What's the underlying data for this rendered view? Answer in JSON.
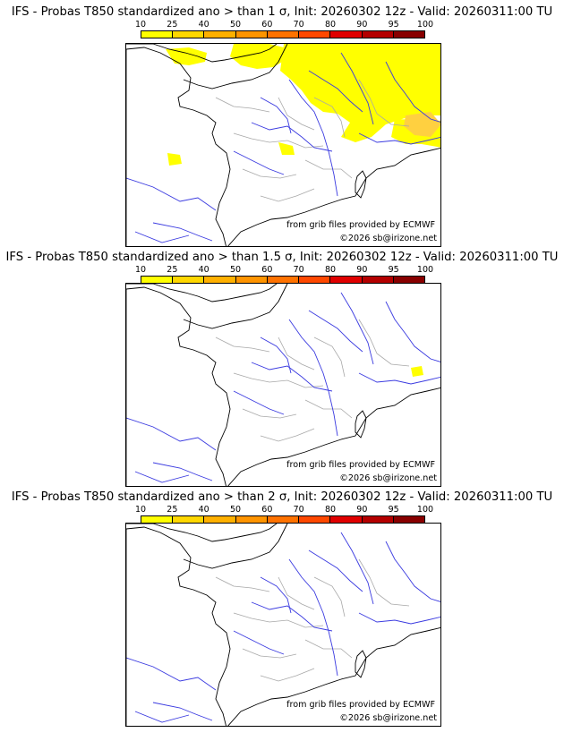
{
  "colorbar": {
    "ticks": [
      "10",
      "25",
      "40",
      "50",
      "60",
      "70",
      "80",
      "90",
      "95",
      "100"
    ],
    "colors": [
      "#ffff00",
      "#ffd700",
      "#ffb000",
      "#ff9400",
      "#ff7200",
      "#ff4800",
      "#e00000",
      "#b40000",
      "#880000"
    ]
  },
  "panels": [
    {
      "title": "IFS - Probas T850  standardized ano > than 1 σ, Init: 20260302 12z - Valid: 20260311:00 TU",
      "source_text": "from grib files provided by ECMWF",
      "copyright": "©2026 sb@irizone.net",
      "shading_level": "high"
    },
    {
      "title": "IFS - Probas T850  standardized ano > than 1.5 σ, Init: 20260302 12z - Valid: 20260311:00 TU",
      "source_text": "from grib files provided by ECMWF",
      "copyright": "©2026 sb@irizone.net",
      "shading_level": "low"
    },
    {
      "title": "IFS - Probas T850  standardized ano > than 2 σ, Init: 20260302 12z - Valid: 20260311:00 TU",
      "source_text": "from grib files provided by ECMWF",
      "copyright": "©2026 sb@irizone.net",
      "shading_level": "none"
    }
  ],
  "colors": {
    "coast": "#000000",
    "rivers": "#3a3ae0",
    "borders": "#a8a8a8",
    "probability_low": "#ffff00",
    "probability_mid": "#ffd040"
  }
}
